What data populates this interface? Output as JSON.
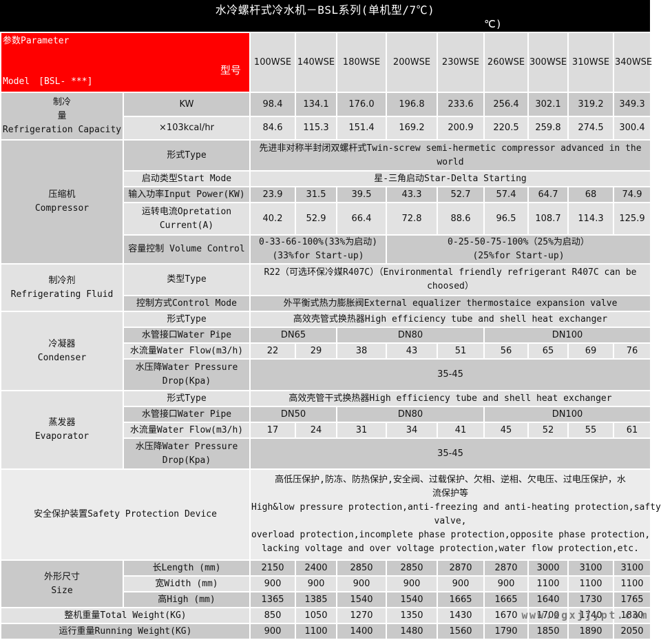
{
  "title": {
    "line1": "水冷螺杆式冷水机－BSL系列(单机型/7℃)",
    "line2": "℃)"
  },
  "param_header": {
    "param_label": "参数Parameter",
    "model_label_cn": "型号",
    "model_label_en": "Model　[BSL- ***]"
  },
  "columns": [
    "100WSE",
    "140WSE",
    "180WSE",
    "200WSE",
    "230WSE",
    "260WSE",
    "300WSE",
    "310WSE",
    "340WSE"
  ],
  "watermark": "www.zgxjjypt.com",
  "colors": {
    "accent_red": "#FF0000",
    "title_bg": "#000000",
    "dark_row": "#C9C9C9",
    "light_row": "#E2E2E2",
    "header_row": "#DCDCDC",
    "watermark_gray": "#696969"
  },
  "table": {
    "rows": [
      {
        "h": 35,
        "shade": "dark",
        "group": {
          "lines": [
            "制冷",
            "量",
            "Refrigeration Capacity"
          ],
          "rows": 2,
          "shade": "dark"
        },
        "label": {
          "lines": [
            "KW"
          ]
        },
        "cells": [
          "98.4",
          "134.1",
          "176.0",
          "196.8",
          "233.6",
          "256.4",
          "302.1",
          "319.2",
          "349.3"
        ]
      },
      {
        "h": 34,
        "shade": "light",
        "label": {
          "lines": [
            "×103kcal/hr"
          ]
        },
        "cells": [
          "84.6",
          "115.3",
          "151.4",
          "169.2",
          "200.9",
          "220.5",
          "259.8",
          "274.5",
          "300.4"
        ]
      },
      {
        "h": 45,
        "shade": "dark",
        "group": {
          "lines": [
            "压缩机",
            "Compressor"
          ],
          "rows": 5,
          "shade": "dark"
        },
        "label": {
          "lines": [
            "形式Type"
          ]
        },
        "spans": [
          {
            "cols": 9,
            "lines": [
              "先进非对称半封闭双螺杆式Twin-screw semi-hermetic compressor advanced in the",
              "world"
            ]
          }
        ]
      },
      {
        "h": 23,
        "shade": "light",
        "label": {
          "lines": [
            "启动类型Start Mode"
          ]
        },
        "spans": [
          {
            "cols": 9,
            "lines": [
              "星-三角启动Star-Delta Starting"
            ]
          }
        ]
      },
      {
        "h": 23,
        "shade": "dark",
        "label": {
          "lines": [
            "输入功率Input Power(KW)"
          ]
        },
        "cells": [
          "23.9",
          "31.5",
          "39.5",
          "43.3",
          "52.7",
          "57.4",
          "64.7",
          "68",
          "74.9"
        ]
      },
      {
        "h": 47,
        "shade": "light",
        "label": {
          "lines": [
            "运转电流Opretation",
            "Current(A)"
          ]
        },
        "cells": [
          "40.2",
          "52.9",
          "66.4",
          "72.8",
          "88.6",
          "96.5",
          "108.7",
          "114.3",
          "125.9"
        ]
      },
      {
        "h": 42,
        "shade": "dark",
        "label": {
          "lines": [
            "容量控制 Volume Control"
          ]
        },
        "spans": [
          {
            "cols": 3,
            "lines": [
              "0-33-66-100%(33%为启动)",
              "(33%for Start-up)"
            ]
          },
          {
            "cols": 6,
            "lines": [
              "0-25-50-75-100%（25%为启动）",
              "(25%for Start-up)"
            ]
          }
        ]
      },
      {
        "h": 46,
        "shade": "light",
        "group": {
          "lines": [
            "制冷剂",
            "Refrigerating Fluid"
          ],
          "rows": 2,
          "shade": "light"
        },
        "label": {
          "lines": [
            "类型Type"
          ]
        },
        "spans": [
          {
            "cols": 9,
            "lines": [
              "R22（可选环保冷媒R407C）（Environmental friendly refrigerant R407C can be",
              "choosed）"
            ]
          }
        ]
      },
      {
        "h": 23,
        "shade": "dark",
        "label": {
          "lines": [
            "控制方式Control Mode"
          ]
        },
        "spans": [
          {
            "cols": 9,
            "lines": [
              "外平衡式热力膨胀阀External equalizer thermostaice expansion valve"
            ]
          }
        ]
      },
      {
        "h": 23,
        "shade": "light",
        "group": {
          "lines": [
            "冷凝器",
            "Condenser"
          ],
          "rows": 4,
          "shade": "light"
        },
        "label": {
          "lines": [
            "形式Type"
          ]
        },
        "spans": [
          {
            "cols": 9,
            "lines": [
              "高效壳管式换热器High efficiency tube and shell heat exchanger"
            ]
          }
        ]
      },
      {
        "h": 23,
        "shade": "dark",
        "label": {
          "lines": [
            "水管接口Water Pipe"
          ]
        },
        "spans": [
          {
            "cols": 2,
            "lines": [
              "DN65"
            ]
          },
          {
            "cols": 3,
            "lines": [
              "DN80"
            ]
          },
          {
            "cols": 4,
            "lines": [
              "DN100"
            ]
          }
        ]
      },
      {
        "h": 23,
        "shade": "light",
        "label": {
          "lines": [
            "水流量Water Flow(m3/h)"
          ]
        },
        "cells": [
          "22",
          "29",
          "38",
          "43",
          "51",
          "56",
          "65",
          "69",
          "76"
        ]
      },
      {
        "h": 46,
        "shade": "dark",
        "label": {
          "lines": [
            "水压降Water Pressure",
            "Drop(Kpa)"
          ]
        },
        "spans": [
          {
            "cols": 9,
            "lines": [
              "35-45"
            ]
          }
        ]
      },
      {
        "h": 23,
        "shade": "light",
        "group": {
          "lines": [
            "蒸发器",
            "Evaporator"
          ],
          "rows": 4,
          "shade": "light"
        },
        "label": {
          "lines": [
            "形式Type"
          ]
        },
        "spans": [
          {
            "cols": 9,
            "lines": [
              "高效壳管干式换热器High efficiency tube and shell heat exchanger"
            ]
          }
        ]
      },
      {
        "h": 23,
        "shade": "dark",
        "label": {
          "lines": [
            "水管接口Water Pipe"
          ]
        },
        "spans": [
          {
            "cols": 2,
            "lines": [
              "DN50"
            ]
          },
          {
            "cols": 3,
            "lines": [
              "DN80"
            ]
          },
          {
            "cols": 4,
            "lines": [
              "DN100"
            ]
          }
        ]
      },
      {
        "h": 23,
        "shade": "light",
        "label": {
          "lines": [
            "水流量Water Flow(m3/h)"
          ]
        },
        "cells": [
          "17",
          "24",
          "31",
          "34",
          "41",
          "45",
          "52",
          "55",
          "61"
        ]
      },
      {
        "h": 45,
        "shade": "dark",
        "label": {
          "lines": [
            "水压降Water Pressure",
            "Drop(Kpa)"
          ]
        },
        "spans": [
          {
            "cols": 9,
            "lines": [
              "35-45"
            ]
          }
        ]
      },
      {
        "h": 132,
        "shade": "safety",
        "merged_label": {
          "lines": [
            "安全保护装置Safety Protection Device"
          ]
        },
        "spans": [
          {
            "cols": 9,
            "lines": [
              "高低压保护,防冻、防热保护,安全阀、过载保护、欠相、逆相、欠电压、过电压保护，水",
              "流保护等",
              "High&low pressure protection,anti-freezing and anti-heating protection,safty",
              "valve,",
              "overload protection,incomplete phase protection,opposite phase protection,",
              "lacking voltage and over voltage protection,water flow protection,etc."
            ]
          }
        ]
      },
      {
        "h": 23,
        "shade": "dark",
        "group": {
          "lines": [
            "外形尺寸",
            "Size"
          ],
          "rows": 3,
          "shade": "dark"
        },
        "label": {
          "lines": [
            "长Length (mm)"
          ]
        },
        "cells": [
          "2150",
          "2400",
          "2850",
          "2850",
          "2870",
          "2870",
          "3000",
          "3100",
          "3100"
        ]
      },
      {
        "h": 23,
        "shade": "light",
        "label": {
          "lines": [
            "宽Width (mm)"
          ]
        },
        "cells": [
          "900",
          "900",
          "900",
          "900",
          "900",
          "900",
          "1100",
          "1100",
          "1100"
        ]
      },
      {
        "h": 23,
        "shade": "dark",
        "label": {
          "lines": [
            "高High (mm)"
          ]
        },
        "cells": [
          "1365",
          "1385",
          "1540",
          "1540",
          "1665",
          "1665",
          "1640",
          "1730",
          "1765"
        ]
      },
      {
        "h": 23,
        "shade": "light",
        "merged_label": {
          "lines": [
            "整机重量Total Weight(KG)"
          ]
        },
        "cells": [
          "850",
          "1050",
          "1270",
          "1350",
          "1430",
          "1670",
          "1700",
          "1740",
          "1830"
        ]
      },
      {
        "h": 23,
        "shade": "dark",
        "merged_label": {
          "lines": [
            "运行重量Running Weight(KG)"
          ]
        },
        "cells": [
          "900",
          "1100",
          "1400",
          "1480",
          "1560",
          "1790",
          "1850",
          "1890",
          "2050"
        ]
      }
    ]
  }
}
